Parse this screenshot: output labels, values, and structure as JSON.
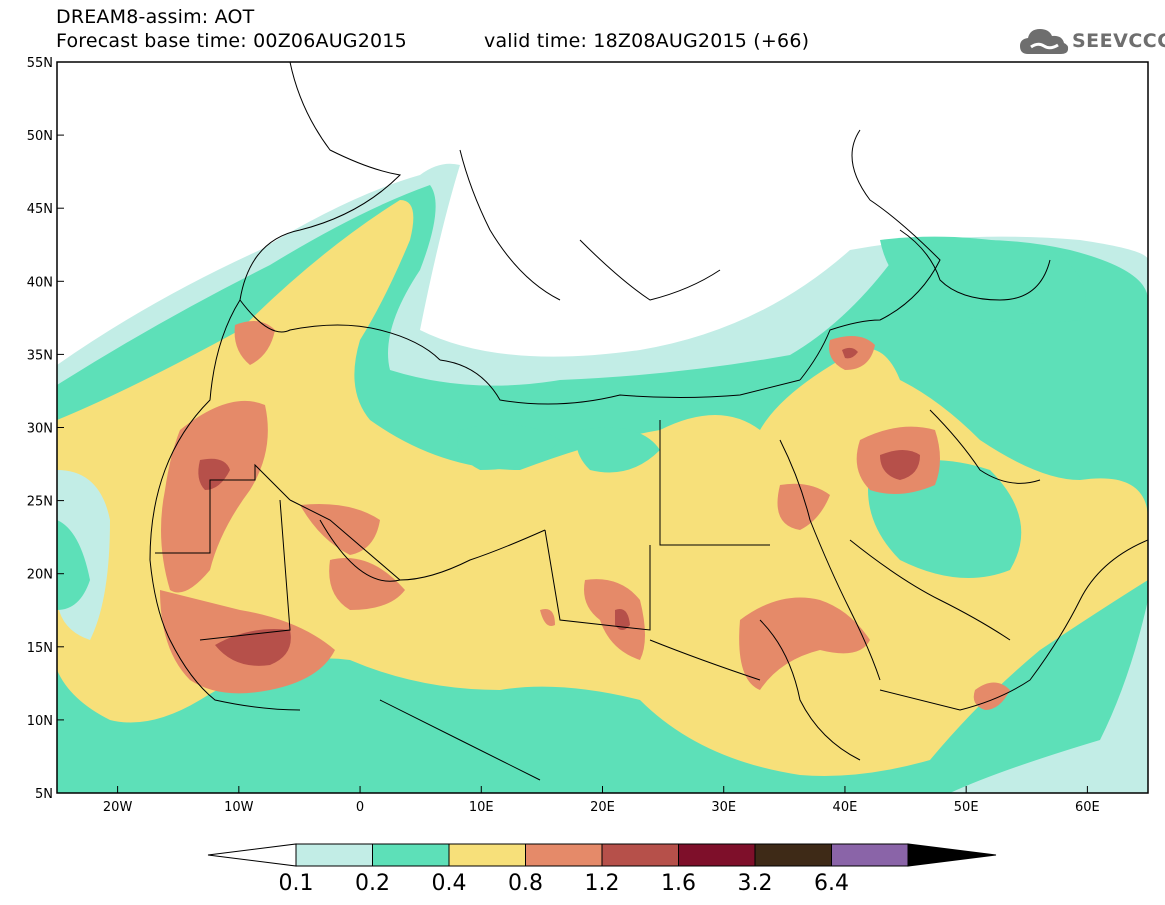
{
  "header": {
    "model_line": "DREAM8-assim: AOT",
    "forecast_base": "Forecast base time: 00Z06AUG2015",
    "valid_time": "valid time: 18Z08AUG2015 (+66)",
    "logo_text": "SEEVCCC"
  },
  "map": {
    "lon_range": [
      -25,
      65
    ],
    "lat_range": [
      5,
      55
    ],
    "lat_ticks": [
      "55N",
      "50N",
      "45N",
      "40N",
      "35N",
      "30N",
      "25N",
      "20N",
      "15N",
      "10N",
      "5N"
    ],
    "lon_ticks": [
      "20W",
      "10W",
      "0",
      "10E",
      "20E",
      "30E",
      "40E",
      "50E",
      "60E"
    ]
  },
  "colorbar": {
    "labels": [
      "0.1",
      "0.2",
      "0.4",
      "0.8",
      "1.2",
      "1.6",
      "3.2",
      "6.4"
    ],
    "colors": [
      "#ffffff",
      "#c2ede6",
      "#5de0b8",
      "#f7e07a",
      "#e58a69",
      "#b6504a",
      "#7e0f2a",
      "#3e2a17",
      "#8a64a8"
    ]
  }
}
